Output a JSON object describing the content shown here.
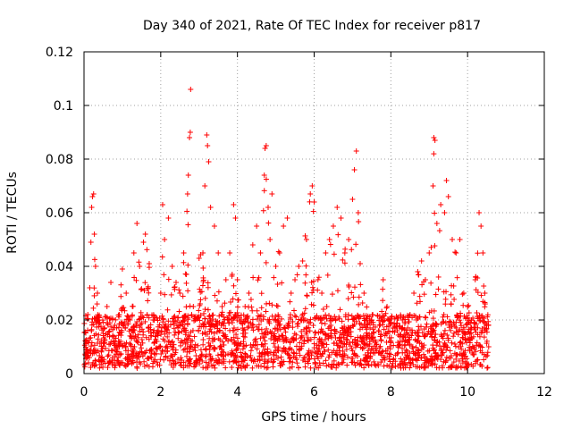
{
  "chart_data": {
    "type": "scatter",
    "title": "Day 340 of 2021, Rate Of TEC Index for receiver p817",
    "xlabel": "GPS time / hours",
    "ylabel": "ROTI / TECUs",
    "xlim": [
      0,
      12
    ],
    "ylim": [
      0,
      0.12
    ],
    "xticks": [
      0,
      2,
      4,
      6,
      8,
      10,
      12
    ],
    "xtick_labels": [
      "0",
      "2",
      "4",
      "6",
      "8",
      "10",
      "12"
    ],
    "yticks": [
      0,
      0.02,
      0.04,
      0.06,
      0.08,
      0.1,
      0.12
    ],
    "ytick_labels": [
      "0",
      "0.02",
      "0.04",
      "0.06",
      "0.08",
      "0.1",
      "0.12"
    ],
    "grid": true,
    "marker": "+",
    "color": "#ff0000",
    "data_x_range": [
      0.0,
      10.55
    ],
    "series": [
      {
        "name": "ROTI",
        "points": [
          [
            0.05,
            0.012
          ],
          [
            0.1,
            0.022
          ],
          [
            0.15,
            0.032
          ],
          [
            0.18,
            0.049
          ],
          [
            0.2,
            0.062
          ],
          [
            0.22,
            0.066
          ],
          [
            0.25,
            0.067
          ],
          [
            0.27,
            0.052
          ],
          [
            0.3,
            0.04
          ],
          [
            0.35,
            0.03
          ],
          [
            0.4,
            0.02
          ],
          [
            0.5,
            0.015
          ],
          [
            0.6,
            0.025
          ],
          [
            0.7,
            0.034
          ],
          [
            0.8,
            0.018
          ],
          [
            0.9,
            0.012
          ],
          [
            1.0,
            0.039
          ],
          [
            1.1,
            0.03
          ],
          [
            1.2,
            0.02
          ],
          [
            1.3,
            0.045
          ],
          [
            1.38,
            0.056
          ],
          [
            1.45,
            0.04
          ],
          [
            1.55,
            0.049
          ],
          [
            1.6,
            0.052
          ],
          [
            1.7,
            0.041
          ],
          [
            1.8,
            0.02
          ],
          [
            1.9,
            0.015
          ],
          [
            2.0,
            0.03
          ],
          [
            2.05,
            0.063
          ],
          [
            2.1,
            0.05
          ],
          [
            2.2,
            0.058
          ],
          [
            2.3,
            0.04
          ],
          [
            2.4,
            0.034
          ],
          [
            2.5,
            0.03
          ],
          [
            2.6,
            0.045
          ],
          [
            2.7,
            0.067
          ],
          [
            2.72,
            0.074
          ],
          [
            2.75,
            0.088
          ],
          [
            2.77,
            0.09
          ],
          [
            2.78,
            0.106
          ],
          [
            2.85,
            0.025
          ],
          [
            2.9,
            0.02
          ],
          [
            3.0,
            0.043
          ],
          [
            3.1,
            0.045
          ],
          [
            3.15,
            0.07
          ],
          [
            3.2,
            0.089
          ],
          [
            3.22,
            0.085
          ],
          [
            3.25,
            0.079
          ],
          [
            3.3,
            0.062
          ],
          [
            3.4,
            0.055
          ],
          [
            3.5,
            0.045
          ],
          [
            3.6,
            0.025
          ],
          [
            3.7,
            0.035
          ],
          [
            3.8,
            0.045
          ],
          [
            3.9,
            0.063
          ],
          [
            3.95,
            0.058
          ],
          [
            4.0,
            0.035
          ],
          [
            4.1,
            0.02
          ],
          [
            4.2,
            0.025
          ],
          [
            4.3,
            0.03
          ],
          [
            4.4,
            0.048
          ],
          [
            4.5,
            0.055
          ],
          [
            4.6,
            0.045
          ],
          [
            4.7,
            0.074
          ],
          [
            4.72,
            0.084
          ],
          [
            4.75,
            0.085
          ],
          [
            4.8,
            0.062
          ],
          [
            4.85,
            0.05
          ],
          [
            4.9,
            0.067
          ],
          [
            5.0,
            0.04
          ],
          [
            5.1,
            0.045
          ],
          [
            5.2,
            0.055
          ],
          [
            5.3,
            0.058
          ],
          [
            5.4,
            0.03
          ],
          [
            5.5,
            0.035
          ],
          [
            5.6,
            0.04
          ],
          [
            5.7,
            0.042
          ],
          [
            5.8,
            0.05
          ],
          [
            5.9,
            0.067
          ],
          [
            5.95,
            0.07
          ],
          [
            6.0,
            0.064
          ],
          [
            6.1,
            0.035
          ],
          [
            6.2,
            0.03
          ],
          [
            6.3,
            0.045
          ],
          [
            6.4,
            0.05
          ],
          [
            6.5,
            0.055
          ],
          [
            6.6,
            0.062
          ],
          [
            6.7,
            0.058
          ],
          [
            6.8,
            0.045
          ],
          [
            6.9,
            0.05
          ],
          [
            7.0,
            0.065
          ],
          [
            7.05,
            0.076
          ],
          [
            7.1,
            0.083
          ],
          [
            7.15,
            0.06
          ],
          [
            7.2,
            0.041
          ],
          [
            7.3,
            0.03
          ],
          [
            7.5,
            0.02
          ],
          [
            7.7,
            0.018
          ],
          [
            7.8,
            0.035
          ],
          [
            7.9,
            0.025
          ],
          [
            8.0,
            0.012
          ],
          [
            8.3,
            0.02
          ],
          [
            8.5,
            0.022
          ],
          [
            8.6,
            0.03
          ],
          [
            8.7,
            0.038
          ],
          [
            8.8,
            0.042
          ],
          [
            8.9,
            0.035
          ],
          [
            9.0,
            0.045
          ],
          [
            9.1,
            0.07
          ],
          [
            9.12,
            0.088
          ],
          [
            9.15,
            0.087
          ],
          [
            9.2,
            0.056
          ],
          [
            9.3,
            0.063
          ],
          [
            9.4,
            0.06
          ],
          [
            9.45,
            0.072
          ],
          [
            9.5,
            0.066
          ],
          [
            9.6,
            0.05
          ],
          [
            9.7,
            0.045
          ],
          [
            9.8,
            0.05
          ],
          [
            9.9,
            0.03
          ],
          [
            10.0,
            0.025
          ],
          [
            10.1,
            0.02
          ],
          [
            10.2,
            0.035
          ],
          [
            10.3,
            0.06
          ],
          [
            10.35,
            0.055
          ],
          [
            10.4,
            0.045
          ],
          [
            10.45,
            0.03
          ],
          [
            10.5,
            0.018
          ],
          [
            10.55,
            0.01
          ]
        ]
      }
    ]
  }
}
